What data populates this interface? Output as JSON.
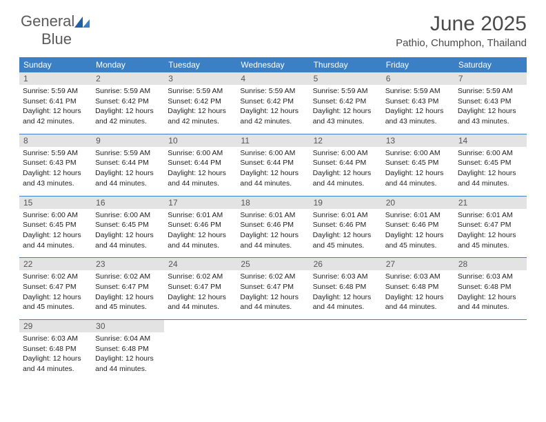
{
  "logo": {
    "word1": "General",
    "word2": "Blue"
  },
  "title": "June 2025",
  "location": "Pathio, Chumphon, Thailand",
  "colors": {
    "header_bg": "#3b7fc4",
    "header_text": "#ffffff",
    "daynum_bg": "#e3e3e3",
    "daynum_text": "#555555",
    "body_text": "#222222",
    "rule": "#3b7fc4"
  },
  "day_names": [
    "Sunday",
    "Monday",
    "Tuesday",
    "Wednesday",
    "Thursday",
    "Friday",
    "Saturday"
  ],
  "weeks": [
    [
      {
        "n": "1",
        "sunrise": "5:59 AM",
        "sunset": "6:41 PM",
        "day_h": "12",
        "day_m": "42"
      },
      {
        "n": "2",
        "sunrise": "5:59 AM",
        "sunset": "6:42 PM",
        "day_h": "12",
        "day_m": "42"
      },
      {
        "n": "3",
        "sunrise": "5:59 AM",
        "sunset": "6:42 PM",
        "day_h": "12",
        "day_m": "42"
      },
      {
        "n": "4",
        "sunrise": "5:59 AM",
        "sunset": "6:42 PM",
        "day_h": "12",
        "day_m": "42"
      },
      {
        "n": "5",
        "sunrise": "5:59 AM",
        "sunset": "6:42 PM",
        "day_h": "12",
        "day_m": "43"
      },
      {
        "n": "6",
        "sunrise": "5:59 AM",
        "sunset": "6:43 PM",
        "day_h": "12",
        "day_m": "43"
      },
      {
        "n": "7",
        "sunrise": "5:59 AM",
        "sunset": "6:43 PM",
        "day_h": "12",
        "day_m": "43"
      }
    ],
    [
      {
        "n": "8",
        "sunrise": "5:59 AM",
        "sunset": "6:43 PM",
        "day_h": "12",
        "day_m": "43"
      },
      {
        "n": "9",
        "sunrise": "5:59 AM",
        "sunset": "6:44 PM",
        "day_h": "12",
        "day_m": "44"
      },
      {
        "n": "10",
        "sunrise": "6:00 AM",
        "sunset": "6:44 PM",
        "day_h": "12",
        "day_m": "44"
      },
      {
        "n": "11",
        "sunrise": "6:00 AM",
        "sunset": "6:44 PM",
        "day_h": "12",
        "day_m": "44"
      },
      {
        "n": "12",
        "sunrise": "6:00 AM",
        "sunset": "6:44 PM",
        "day_h": "12",
        "day_m": "44"
      },
      {
        "n": "13",
        "sunrise": "6:00 AM",
        "sunset": "6:45 PM",
        "day_h": "12",
        "day_m": "44"
      },
      {
        "n": "14",
        "sunrise": "6:00 AM",
        "sunset": "6:45 PM",
        "day_h": "12",
        "day_m": "44"
      }
    ],
    [
      {
        "n": "15",
        "sunrise": "6:00 AM",
        "sunset": "6:45 PM",
        "day_h": "12",
        "day_m": "44"
      },
      {
        "n": "16",
        "sunrise": "6:00 AM",
        "sunset": "6:45 PM",
        "day_h": "12",
        "day_m": "44"
      },
      {
        "n": "17",
        "sunrise": "6:01 AM",
        "sunset": "6:46 PM",
        "day_h": "12",
        "day_m": "44"
      },
      {
        "n": "18",
        "sunrise": "6:01 AM",
        "sunset": "6:46 PM",
        "day_h": "12",
        "day_m": "44"
      },
      {
        "n": "19",
        "sunrise": "6:01 AM",
        "sunset": "6:46 PM",
        "day_h": "12",
        "day_m": "45"
      },
      {
        "n": "20",
        "sunrise": "6:01 AM",
        "sunset": "6:46 PM",
        "day_h": "12",
        "day_m": "45"
      },
      {
        "n": "21",
        "sunrise": "6:01 AM",
        "sunset": "6:47 PM",
        "day_h": "12",
        "day_m": "45"
      }
    ],
    [
      {
        "n": "22",
        "sunrise": "6:02 AM",
        "sunset": "6:47 PM",
        "day_h": "12",
        "day_m": "45"
      },
      {
        "n": "23",
        "sunrise": "6:02 AM",
        "sunset": "6:47 PM",
        "day_h": "12",
        "day_m": "45"
      },
      {
        "n": "24",
        "sunrise": "6:02 AM",
        "sunset": "6:47 PM",
        "day_h": "12",
        "day_m": "44"
      },
      {
        "n": "25",
        "sunrise": "6:02 AM",
        "sunset": "6:47 PM",
        "day_h": "12",
        "day_m": "44"
      },
      {
        "n": "26",
        "sunrise": "6:03 AM",
        "sunset": "6:48 PM",
        "day_h": "12",
        "day_m": "44"
      },
      {
        "n": "27",
        "sunrise": "6:03 AM",
        "sunset": "6:48 PM",
        "day_h": "12",
        "day_m": "44"
      },
      {
        "n": "28",
        "sunrise": "6:03 AM",
        "sunset": "6:48 PM",
        "day_h": "12",
        "day_m": "44"
      }
    ],
    [
      {
        "n": "29",
        "sunrise": "6:03 AM",
        "sunset": "6:48 PM",
        "day_h": "12",
        "day_m": "44"
      },
      {
        "n": "30",
        "sunrise": "6:04 AM",
        "sunset": "6:48 PM",
        "day_h": "12",
        "day_m": "44"
      },
      null,
      null,
      null,
      null,
      null
    ]
  ]
}
